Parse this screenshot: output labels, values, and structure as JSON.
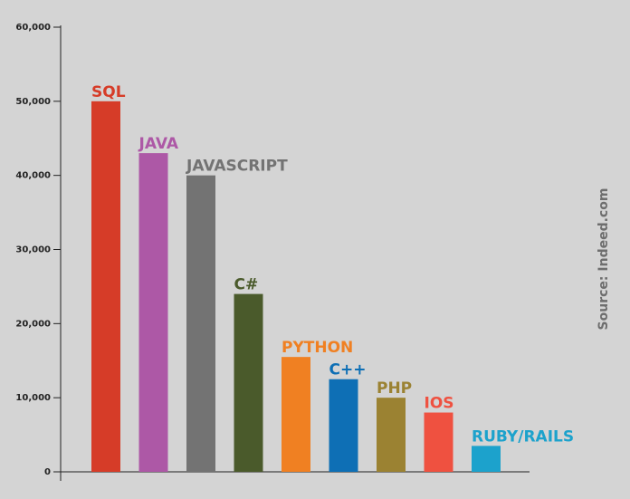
{
  "chart_data": {
    "type": "bar",
    "title": "",
    "xlabel": "",
    "ylabel": "",
    "categories": [
      "SQL",
      "JAVA",
      "JAVASCRIPT",
      "C#",
      "PYTHON",
      "C++",
      "PHP",
      "IOS",
      "RUBY/RAILS"
    ],
    "values": [
      50000,
      43000,
      40000,
      24000,
      15500,
      12500,
      10000,
      8000,
      3500
    ],
    "colors": [
      "#d63c28",
      "#ad58a6",
      "#737373",
      "#4a5a2b",
      "#f08022",
      "#0e6fb5",
      "#9b8232",
      "#ef5140",
      "#1ca2cc"
    ],
    "label_colors": [
      "#d63c28",
      "#ad58a6",
      "#737373",
      "#4a5a2b",
      "#f08022",
      "#0e6fb5",
      "#9b8232",
      "#ef5140",
      "#1ca2cc"
    ],
    "ylim": [
      0,
      60000
    ],
    "y_ticks": [
      0,
      10000,
      20000,
      30000,
      40000,
      50000,
      60000
    ],
    "y_tick_labels": [
      "0",
      "10,000",
      "20,000",
      "30,000",
      "40,000",
      "50,000",
      "60,000"
    ],
    "grid": false,
    "source": "Source: Indeed.com"
  }
}
